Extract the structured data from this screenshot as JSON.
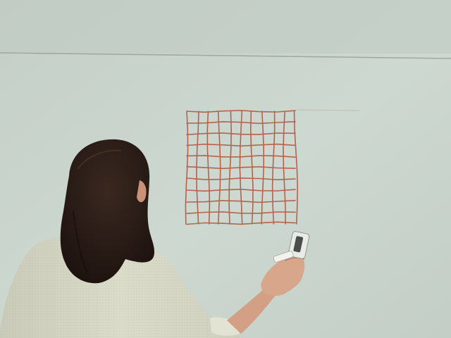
{
  "scene": {
    "description_free": true,
    "colors": {
      "wall": "#c8d3cb",
      "wall_top": "#c2cdc5",
      "seam": "#a8b2ab",
      "grid_ink": "#b4644e",
      "hair": "#2a1c16",
      "sweater": "#d6d7c6",
      "skin": "#d7a58a",
      "marker_body": "#e8eae6"
    },
    "grid": {
      "vertical_lines": 11,
      "horizontal_lines": 11
    }
  }
}
